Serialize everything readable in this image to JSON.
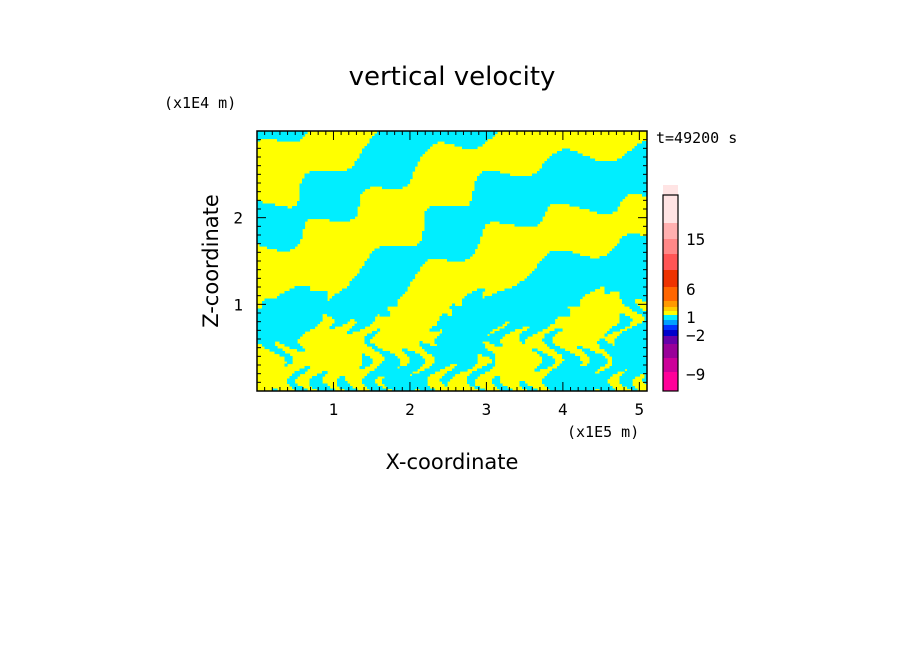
{
  "chart_data": {
    "type": "heatmap",
    "title": "vertical velocity",
    "xlabel": "X-coordinate",
    "ylabel": "Z-coordinate",
    "x_unit": "(x1E5 m)",
    "y_unit": "(x1E4 m)",
    "time_label": "t=49200 s",
    "xlim": [
      0,
      5.1
    ],
    "ylim": [
      0,
      3.0
    ],
    "x_ticks": [
      "1",
      "2",
      "3",
      "4",
      "5"
    ],
    "y_ticks": [
      "1",
      "2"
    ],
    "colorbar": {
      "labels": [
        "15",
        "6",
        "1",
        "−2",
        "−9"
      ],
      "colors": [
        "#ff0099",
        "#cc0099",
        "#990099",
        "#6600aa",
        "#0000cc",
        "#0033ff",
        "#00a0ff",
        "#00eeff",
        "#ffff00",
        "#ffcc00",
        "#ff9900",
        "#ff6600",
        "#ee3300",
        "#ff5555",
        "#ff8888",
        "#ffb0b0",
        "#ffe4e4"
      ]
    },
    "field_colors": {
      "positive": "#ffff00",
      "negative": "#00eeff"
    }
  }
}
